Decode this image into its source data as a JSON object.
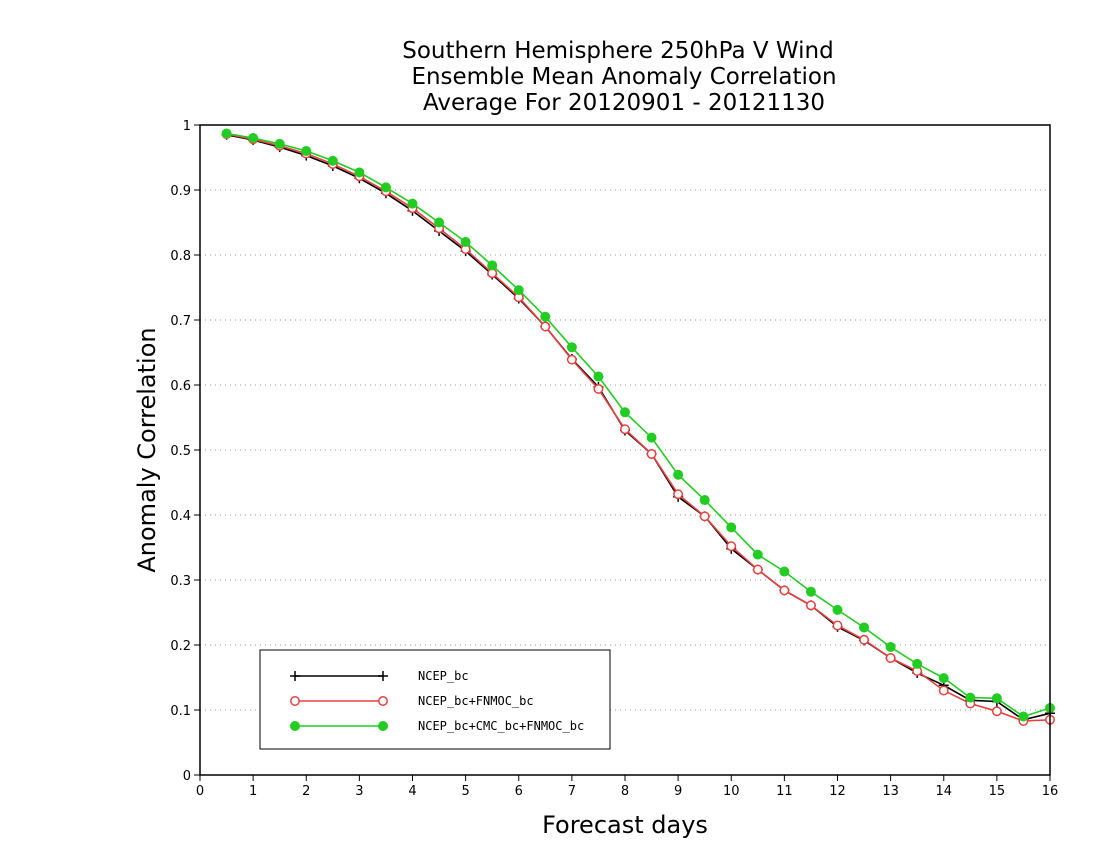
{
  "chart_data": {
    "type": "line",
    "title": [
      "Southern Hemisphere 250hPa V Wind",
      "Ensemble Mean Anomaly Correlation",
      "Average For 20120901 - 20121130"
    ],
    "xlabel": "Forecast days",
    "ylabel": "Anomaly Correlation",
    "xlim": [
      0,
      16
    ],
    "ylim": [
      0,
      1
    ],
    "x_ticks": [
      "0",
      "1",
      "2",
      "3",
      "4",
      "5",
      "6",
      "7",
      "8",
      "9",
      "10",
      "11",
      "12",
      "13",
      "14",
      "15",
      "16"
    ],
    "y_ticks": [
      "0",
      "0.1",
      "0.2",
      "0.3",
      "0.4",
      "0.5",
      "0.6",
      "0.7",
      "0.8",
      "0.9",
      "1"
    ],
    "grid": "horizontal dotted",
    "legend_position": "bottom-left",
    "x": [
      0.5,
      1,
      1.5,
      2,
      2.5,
      3,
      3.5,
      4,
      4.5,
      5,
      5.5,
      6,
      6.5,
      7,
      7.5,
      8,
      8.5,
      9,
      9.5,
      10,
      10.5,
      11,
      11.5,
      12,
      12.5,
      13,
      13.5,
      14,
      14.5,
      15,
      15.5,
      16
    ],
    "series": [
      {
        "name": "NCEP_bc",
        "color": "#000000",
        "marker": "plus",
        "values": [
          0.985,
          0.977,
          0.966,
          0.953,
          0.937,
          0.918,
          0.895,
          0.868,
          0.837,
          0.806,
          0.77,
          0.733,
          0.69,
          0.64,
          0.597,
          0.53,
          0.494,
          0.428,
          0.398,
          0.348,
          0.316,
          0.284,
          0.261,
          0.228,
          0.207,
          0.18,
          0.157,
          0.138,
          0.115,
          0.113,
          0.085,
          0.095
        ]
      },
      {
        "name": "NCEP_bc+FNMOC_bc",
        "color": "#e84040",
        "marker": "open-circle",
        "values": [
          0.986,
          0.978,
          0.968,
          0.956,
          0.94,
          0.921,
          0.898,
          0.872,
          0.841,
          0.809,
          0.772,
          0.735,
          0.69,
          0.639,
          0.594,
          0.532,
          0.494,
          0.432,
          0.398,
          0.352,
          0.316,
          0.284,
          0.261,
          0.23,
          0.208,
          0.18,
          0.16,
          0.13,
          0.11,
          0.098,
          0.083,
          0.085
        ]
      },
      {
        "name": "NCEP_bc+CMC_bc+FNMOC_bc",
        "color": "#22cc22",
        "marker": "filled-circle",
        "values": [
          0.987,
          0.98,
          0.971,
          0.96,
          0.945,
          0.927,
          0.904,
          0.879,
          0.85,
          0.82,
          0.784,
          0.746,
          0.705,
          0.658,
          0.613,
          0.558,
          0.519,
          0.462,
          0.423,
          0.381,
          0.339,
          0.313,
          0.282,
          0.254,
          0.227,
          0.197,
          0.171,
          0.149,
          0.119,
          0.118,
          0.09,
          0.103
        ]
      }
    ]
  }
}
